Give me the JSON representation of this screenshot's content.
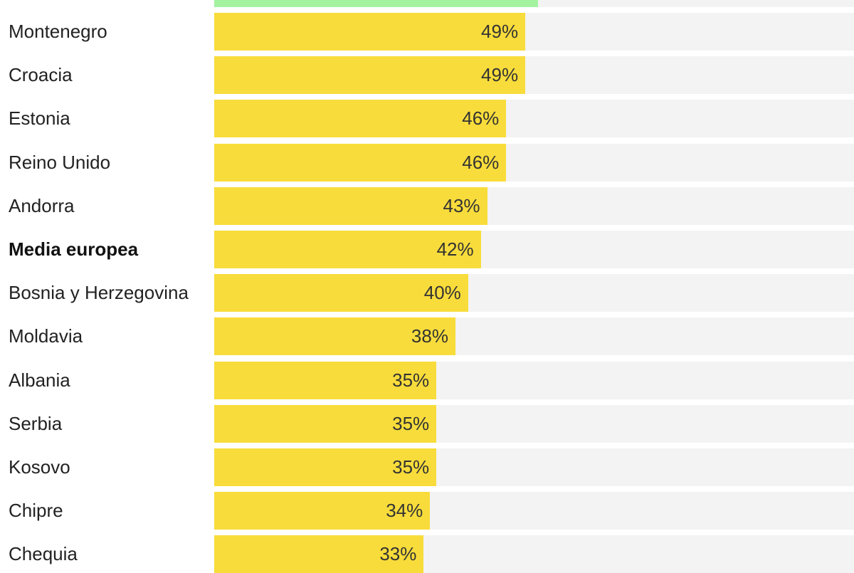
{
  "chart_data": {
    "type": "bar",
    "orientation": "horizontal",
    "categories": [
      "Montenegro",
      "Croacia",
      "Estonia",
      "Reino Unido",
      "Andorra",
      "Media europea",
      "Bosnia y Herzegovina",
      "Moldavia",
      "Albania",
      "Serbia",
      "Kosovo",
      "Chipre",
      "Chequia"
    ],
    "values": [
      49,
      49,
      46,
      46,
      43,
      42,
      40,
      38,
      35,
      35,
      35,
      34,
      33
    ],
    "value_labels": [
      "49%",
      "49%",
      "46%",
      "46%",
      "43%",
      "42%",
      "40%",
      "38%",
      "35%",
      "35%",
      "35%",
      "34%",
      "33%"
    ],
    "highlight": [
      "Media europea"
    ],
    "partial_top_bar": {
      "value": 51,
      "color": "#a3f2a0"
    },
    "xlim": [
      0,
      100
    ],
    "bar_color": "#f8dc3b",
    "track_color": "#f3f3f3",
    "title": "",
    "xlabel": "",
    "ylabel": "",
    "grid": false,
    "legend": "none"
  }
}
